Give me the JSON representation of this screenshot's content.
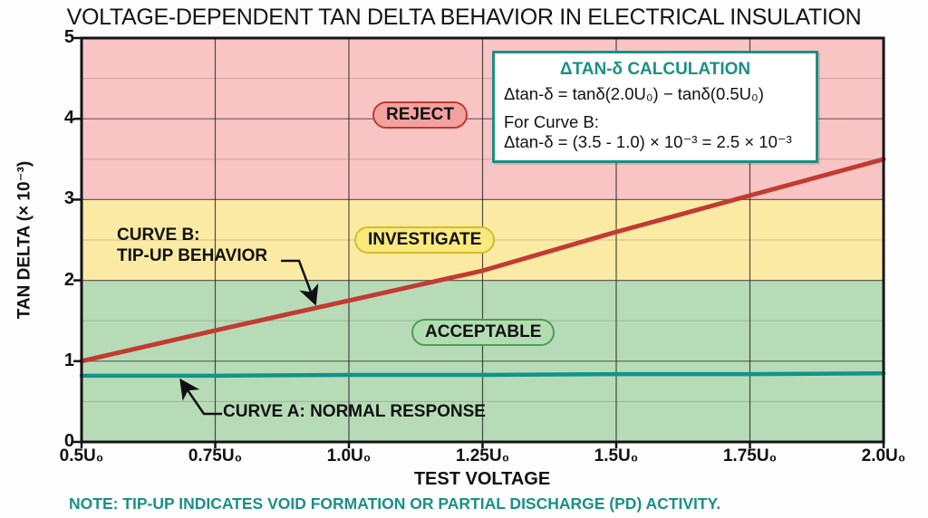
{
  "title": "VOLTAGE-DEPENDENT TAN DELTA BEHAVIOR IN ELECTRICAL INSULATION",
  "note": "NOTE: TIP-UP INDICATES VOID FORMATION OR PARTIAL DISCHARGE (PD) ACTIVITY.",
  "colors": {
    "accent_teal": "#1a9085",
    "curve_b_red": "#c23b33",
    "curve_a_teal": "#10948c",
    "axis_black": "#111111"
  },
  "calc_box": {
    "title": "ΔTAN-δ CALCULATION",
    "line1": "Δtan-δ = tanδ(2.0U₀) − tanδ(0.5U₀)",
    "line2": "For Curve B:",
    "line3": "Δtan-δ = (3.5 - 1.0) × 10⁻³ = 2.5 × 10⁻³"
  },
  "annotations": {
    "curve_b_label_line1": "CURVE B:",
    "curve_b_label_line2": "TIP-UP BEHAVIOR",
    "curve_a_label": "CURVE A: NORMAL RESPONSE"
  },
  "chart_data": {
    "type": "line",
    "title": "VOLTAGE-DEPENDENT TAN DELTA BEHAVIOR IN ELECTRICAL INSULATION",
    "xlabel": "TEST VOLTAGE",
    "ylabel": "TAN DELTA (× 10⁻³)",
    "xlim": [
      0.5,
      2.0
    ],
    "ylim": [
      0,
      5
    ],
    "grid": "on",
    "x_ticks": [
      0.5,
      0.75,
      1.0,
      1.25,
      1.5,
      1.75,
      2.0
    ],
    "x_tick_labels": [
      "0.5U₀",
      "0.75U₀",
      "1.0U₀",
      "1.25U₀",
      "1.5U₀",
      "1.75U₀",
      "2.0U₀"
    ],
    "y_ticks": [
      0,
      1,
      2,
      3,
      4,
      5
    ],
    "y_tick_labels": [
      "0",
      "1",
      "2",
      "3",
      "4",
      "5"
    ],
    "minor_y_step": 0.5,
    "zones": [
      {
        "label": "ACCEPTABLE",
        "from": 0,
        "to": 2,
        "color": "#b7dbb7",
        "pill_fill": "#b2dcb2",
        "pill_border": "#4d9e53"
      },
      {
        "label": "INVESTIGATE",
        "from": 2,
        "to": 3,
        "color": "#faeaa4",
        "pill_fill": "#f9e97e",
        "pill_border": "#d7bd2a"
      },
      {
        "label": "REJECT",
        "from": 3,
        "to": 5,
        "color": "#f8c5c4",
        "pill_fill": "#f4a2a0",
        "pill_border": "#c0392b"
      }
    ],
    "series": [
      {
        "name": "Curve B: Tip-Up Behavior",
        "color": "#c23b33",
        "width": 5,
        "x": [
          0.5,
          0.75,
          1.0,
          1.25,
          1.5,
          1.75,
          2.0
        ],
        "values": [
          1.0,
          1.38,
          1.75,
          2.12,
          2.6,
          3.05,
          3.5
        ]
      },
      {
        "name": "Curve A: Normal Response",
        "color": "#10948c",
        "width": 4.5,
        "x": [
          0.5,
          0.75,
          1.0,
          1.25,
          1.5,
          1.75,
          2.0
        ],
        "values": [
          0.82,
          0.82,
          0.83,
          0.83,
          0.84,
          0.84,
          0.85
        ]
      }
    ],
    "delta_tan_delta": {
      "at_2_0U0": 3.5,
      "at_0_5U0": 1.0,
      "result": 2.5,
      "unit": "× 10⁻³"
    }
  }
}
